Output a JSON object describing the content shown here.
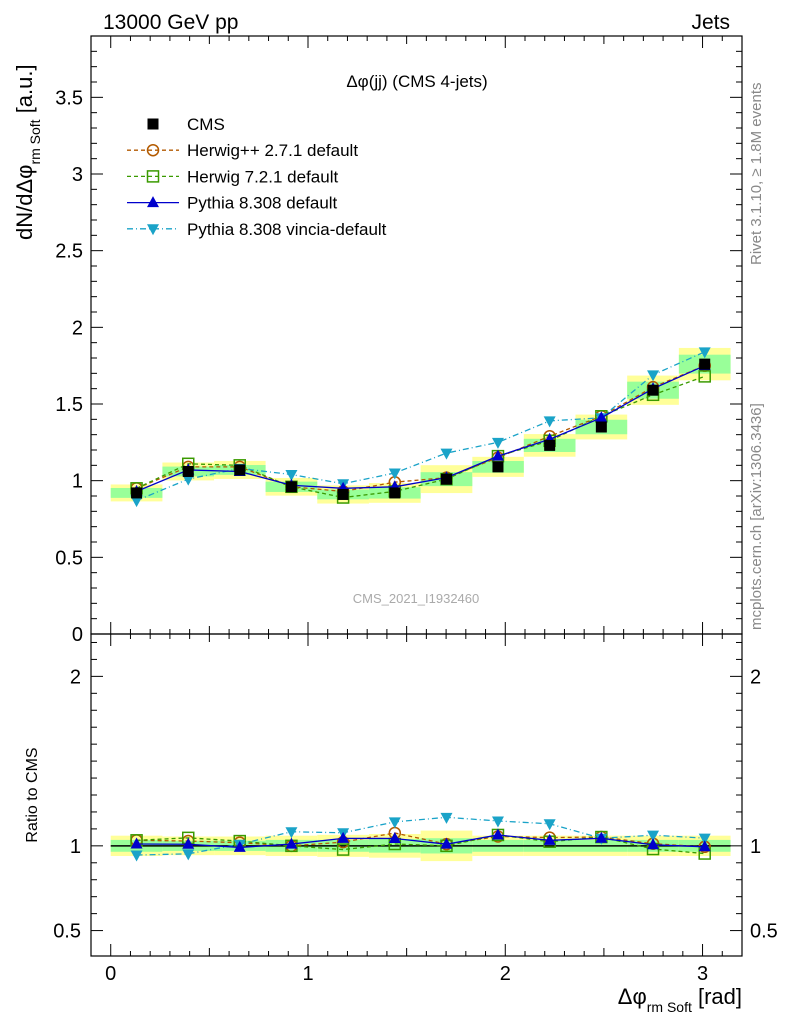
{
  "header": {
    "left": "13000 GeV pp",
    "right": "Jets"
  },
  "side_labels": {
    "rivet": "Rivet 3.1.10, ≥ 1.8M events",
    "mcplots": "mcplots.cern.ch [arXiv:1306.3436]"
  },
  "chart_data": {
    "type": "line",
    "title": "Δφ(jj) (CMS 4-jets)",
    "watermark": "CMS_2021_I1932460",
    "xlabel": "Δφ_rm Soft [rad]",
    "ylabel": "dN/dΔφ_rm Soft [a.u.]",
    "ratio_ylabel": "Ratio to CMS",
    "xlim": [
      -0.1,
      3.2
    ],
    "ylim": [
      0,
      3.9
    ],
    "ratio_ylim": [
      0.35,
      2.25
    ],
    "x_ticks": [
      0,
      1,
      2,
      3
    ],
    "y_ticks": [
      0,
      0.5,
      1,
      1.5,
      2,
      2.5,
      3,
      3.5
    ],
    "ratio_y_ticks": [
      0.5,
      1,
      2
    ],
    "x": [
      0.131,
      0.393,
      0.654,
      0.916,
      1.178,
      1.44,
      1.702,
      1.963,
      2.225,
      2.487,
      2.749,
      3.011
    ],
    "bin_edges": [
      0.0,
      0.262,
      0.524,
      0.785,
      1.047,
      1.309,
      1.571,
      1.833,
      2.094,
      2.356,
      2.618,
      2.88,
      3.142
    ],
    "band_inner": [
      0.035,
      0.03,
      0.03,
      0.035,
      0.035,
      0.04,
      0.045,
      0.035,
      0.035,
      0.035,
      0.035,
      0.035
    ],
    "band_outer": [
      0.06,
      0.055,
      0.055,
      0.06,
      0.065,
      0.07,
      0.09,
      0.06,
      0.06,
      0.06,
      0.06,
      0.06
    ],
    "series": [
      {
        "name": "CMS",
        "color": "#000000",
        "marker": "square-filled",
        "dash": "none",
        "values": [
          0.92,
          1.06,
          1.07,
          0.96,
          0.91,
          0.92,
          1.01,
          1.09,
          1.23,
          1.35,
          1.59,
          1.76
        ]
      },
      {
        "name": "Herwig++ 2.7.1 default",
        "color": "#b35a00",
        "marker": "circle-open",
        "dash": "4,3",
        "values": [
          0.95,
          1.09,
          1.09,
          0.96,
          0.93,
          0.99,
          1.02,
          1.15,
          1.29,
          1.42,
          1.61,
          1.75
        ]
      },
      {
        "name": "Herwig 7.2.1 default",
        "color": "#3a9a00",
        "marker": "square-open",
        "dash": "4,3",
        "values": [
          0.95,
          1.11,
          1.1,
          0.96,
          0.89,
          0.93,
          1.01,
          1.16,
          1.26,
          1.42,
          1.56,
          1.68
        ]
      },
      {
        "name": "Pythia 8.308 default",
        "color": "#0000cc",
        "marker": "triangle-up",
        "dash": "none",
        "values": [
          0.93,
          1.07,
          1.06,
          0.97,
          0.95,
          0.96,
          1.02,
          1.16,
          1.27,
          1.41,
          1.6,
          1.75
        ]
      },
      {
        "name": "Pythia 8.308 vincia-default",
        "color": "#1aa3c8",
        "marker": "triangle-down",
        "dash": "6,3,1,3",
        "values": [
          0.87,
          1.01,
          1.08,
          1.04,
          0.98,
          1.05,
          1.18,
          1.25,
          1.39,
          1.41,
          1.69,
          1.84
        ]
      }
    ]
  }
}
